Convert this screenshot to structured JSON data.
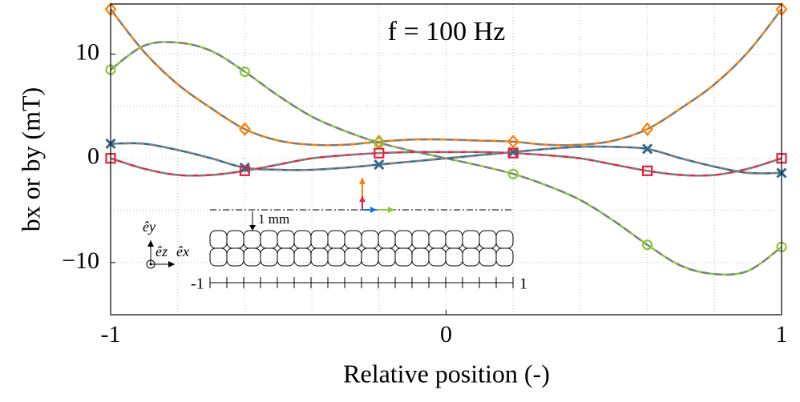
{
  "chart_data": {
    "type": "line",
    "title": "f = 100 Hz",
    "xlabel": "Relative position (-)",
    "ylabel": "bx or by (mT)",
    "x": [
      -1,
      -0.9,
      -0.8,
      -0.7,
      -0.6,
      -0.5,
      -0.4,
      -0.3,
      -0.2,
      -0.1,
      0,
      0.1,
      0.2,
      0.3,
      0.4,
      0.5,
      0.6,
      0.7,
      0.8,
      0.9,
      1
    ],
    "xlim": [
      -1,
      1
    ],
    "ylim": [
      -15,
      14.8
    ],
    "xticks": [
      -1,
      0,
      1
    ],
    "yticks": [
      {
        "value": -10,
        "label": "−10"
      },
      0,
      10
    ],
    "grid_x": [
      -0.8,
      -0.6,
      -0.4,
      -0.2,
      0,
      0.2,
      0.4,
      0.6,
      0.8
    ],
    "grid_y": [
      -10,
      -5,
      0,
      5,
      10
    ],
    "grid": true,
    "marker_every": 4,
    "reference_color": "#808080",
    "series": [
      {
        "color": "#ff8000",
        "marker": "diamond",
        "values": [
          14.3,
          10.2,
          7.1,
          4.8,
          2.8,
          1.7,
          1.3,
          1.3,
          1.6,
          1.8,
          1.8,
          1.7,
          1.6,
          1.3,
          1.3,
          1.7,
          2.8,
          4.8,
          7.1,
          10.2,
          14.3
        ]
      },
      {
        "color": "#8cc63f",
        "marker": "circle",
        "values": [
          8.5,
          10.8,
          11.1,
          10.3,
          8.3,
          6.0,
          4.0,
          2.6,
          1.5,
          0.7,
          0,
          -0.7,
          -1.5,
          -2.6,
          -4.0,
          -6.0,
          -8.3,
          -10.3,
          -11.1,
          -10.8,
          -8.5
        ]
      },
      {
        "color": "#2e6a8e",
        "marker": "x",
        "values": [
          1.4,
          1.4,
          0.8,
          0,
          -0.9,
          -1.1,
          -1.1,
          -0.9,
          -0.6,
          -0.3,
          0,
          0.3,
          0.6,
          0.9,
          1.1,
          1.1,
          0.9,
          0,
          -0.8,
          -1.4,
          -1.4
        ]
      },
      {
        "color": "#e8203c",
        "marker": "square",
        "values": [
          0,
          -1.0,
          -1.6,
          -1.6,
          -1.2,
          -0.6,
          0,
          0.3,
          0.5,
          0.6,
          0.6,
          0.6,
          0.5,
          0.3,
          0,
          -0.6,
          -1.2,
          -1.6,
          -1.6,
          -1.0,
          0
        ]
      }
    ],
    "inset": {
      "gap_label": "1 mm",
      "left_label": "-1",
      "right_label": "1",
      "axis_y": "êy",
      "axis_z": "êz",
      "axis_x": "êx"
    }
  }
}
